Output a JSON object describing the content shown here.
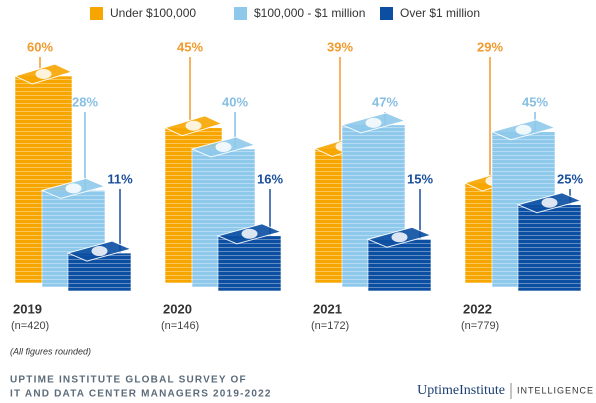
{
  "chart_data": {
    "type": "bar",
    "categories": [
      "2019",
      "2020",
      "2021",
      "2022"
    ],
    "sample_sizes": [
      "(n=420)",
      "(n=146)",
      "(n=172)",
      "(n=779)"
    ],
    "series": [
      {
        "name": "Under $100,000",
        "color": "#f7a600",
        "label_color": "#f29a2e",
        "values": [
          60,
          45,
          39,
          29
        ],
        "value_labels": [
          "60%",
          "45%",
          "39%",
          "29%"
        ]
      },
      {
        "name": "$100,000 - $1 million",
        "color": "#8ec9eb",
        "label_color": "#86bfe3",
        "values": [
          28,
          40,
          47,
          45
        ],
        "value_labels": [
          "28%",
          "40%",
          "47%",
          "45%"
        ]
      },
      {
        "name": "Over $1 million",
        "color": "#0b4ea2",
        "label_color": "#1b4f9c",
        "values": [
          11,
          16,
          15,
          25
        ],
        "value_labels": [
          "11%",
          "16%",
          "15%",
          "25%"
        ]
      }
    ],
    "footnote": "(All figures rounded)",
    "source": [
      "UPTIME INSTITUTE GLOBAL SURVEY OF",
      "IT AND DATA CENTER MANAGERS 2019-2022"
    ],
    "logo": {
      "brand": "UptimeInstitute",
      "product": "INTELLIGENCE"
    }
  }
}
